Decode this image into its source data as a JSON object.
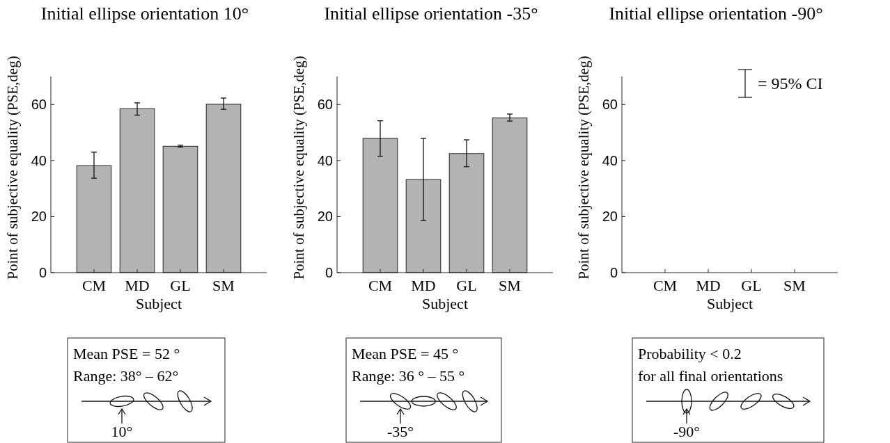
{
  "chart_data": [
    {
      "type": "bar",
      "title": "Initial ellipse orientation 10°",
      "xlabel": "Subject",
      "ylabel": "Point of subjective equality (PSE,deg)",
      "categories": [
        "CM",
        "MD",
        "GL",
        "SM"
      ],
      "values": [
        38.2,
        58.5,
        45.1,
        60.1
      ],
      "errors": [
        [
          33.7,
          43
        ],
        [
          56.2,
          60.6
        ],
        [
          44.8,
          45.5
        ],
        [
          58.3,
          62.3
        ]
      ],
      "color": "#b3b3b3",
      "ylim": [
        0,
        70
      ],
      "yticks": [
        0,
        20,
        40,
        60
      ],
      "grid": false,
      "annotations": [
        "Mean PSE = 52 °",
        "Range: 38° – 62°",
        "10°"
      ]
    },
    {
      "type": "bar",
      "title": "Initial ellipse orientation -35°",
      "xlabel": "Subject",
      "ylabel": "Point of subjective equality (PSE,deg)",
      "categories": [
        "CM",
        "MD",
        "GL",
        "SM"
      ],
      "values": [
        47.9,
        33.2,
        42.5,
        55.2
      ],
      "errors": [
        [
          41.5,
          54.2
        ],
        [
          18.6,
          47.9
        ],
        [
          37.8,
          47.4
        ],
        [
          54.1,
          56.6
        ]
      ],
      "color": "#b3b3b3",
      "ylim": [
        0,
        70
      ],
      "yticks": [
        0,
        20,
        40,
        60
      ],
      "grid": false,
      "annotations": [
        "Mean PSE = 45 °",
        "Range: 36 ° – 55 °",
        "-35°"
      ]
    },
    {
      "type": "bar",
      "title": "Initial ellipse orientation -90°",
      "xlabel": "Subject",
      "ylabel": "Point of subjective equality (PSE,deg)",
      "categories": [
        "CM",
        "MD",
        "GL",
        "SM"
      ],
      "values": [
        0,
        0,
        0,
        0
      ],
      "color": "#b3b3b3",
      "ylim": [
        0,
        70
      ],
      "yticks": [
        0,
        20,
        40,
        60
      ],
      "grid": false,
      "annotations": [
        "Probability < 0.2",
        "for all final orientations",
        "-90°",
        "= 95% CI"
      ]
    }
  ]
}
